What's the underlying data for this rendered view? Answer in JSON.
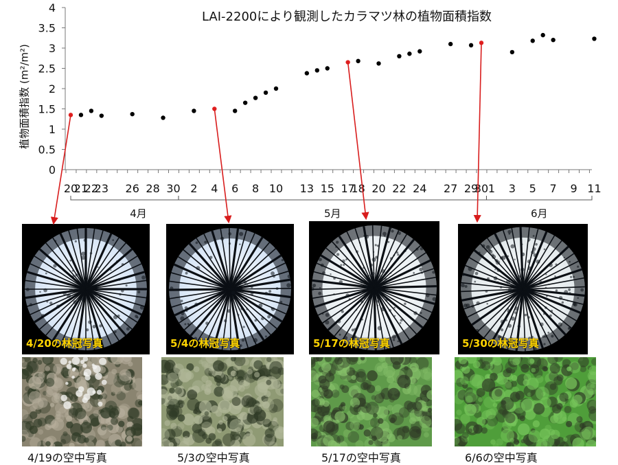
{
  "chart_data": {
    "type": "scatter",
    "title": "LAI-2200により観測したカラマツ林の植物面積指数",
    "ylabel": "植物面積指数 (m²/m²)",
    "ylim": [
      0,
      4
    ],
    "yticks": [
      "0",
      "0.5",
      "1",
      "1.5",
      "2",
      "2.5",
      "3",
      "3.5",
      "4"
    ],
    "xlim_days": [
      110,
      162
    ],
    "xticks": [
      {
        "day": 110,
        "label": "20"
      },
      {
        "day": 111,
        "label": "21"
      },
      {
        "day": 112,
        "label": "22"
      },
      {
        "day": 113,
        "label": "23"
      },
      {
        "day": 116,
        "label": "26"
      },
      {
        "day": 118,
        "label": "28"
      },
      {
        "day": 120,
        "label": "30"
      },
      {
        "day": 122,
        "label": "2"
      },
      {
        "day": 124,
        "label": "4"
      },
      {
        "day": 126,
        "label": "6"
      },
      {
        "day": 128,
        "label": "8"
      },
      {
        "day": 130,
        "label": "10"
      },
      {
        "day": 133,
        "label": "13"
      },
      {
        "day": 135,
        "label": "15"
      },
      {
        "day": 137,
        "label": "17"
      },
      {
        "day": 138,
        "label": "18"
      },
      {
        "day": 140,
        "label": "20"
      },
      {
        "day": 142,
        "label": "22"
      },
      {
        "day": 144,
        "label": "24"
      },
      {
        "day": 147,
        "label": "27"
      },
      {
        "day": 149,
        "label": "29"
      },
      {
        "day": 150,
        "label": "30"
      },
      {
        "day": 151,
        "label": "1"
      },
      {
        "day": 153,
        "label": "3"
      },
      {
        "day": 155,
        "label": "5"
      },
      {
        "day": 157,
        "label": "7"
      },
      {
        "day": 159,
        "label": "9"
      },
      {
        "day": 161,
        "label": "11"
      }
    ],
    "months": [
      {
        "label": "4月",
        "from_day": 110,
        "to_day": 120.5
      },
      {
        "label": "5月",
        "from_day": 120.5,
        "to_day": 150.5
      },
      {
        "label": "6月",
        "from_day": 150.5,
        "to_day": 162
      }
    ],
    "series": [
      {
        "points": [
          {
            "day": 110,
            "y": 1.35,
            "highlight": true
          },
          {
            "day": 111,
            "y": 1.35
          },
          {
            "day": 112,
            "y": 1.45
          },
          {
            "day": 113,
            "y": 1.33
          },
          {
            "day": 116,
            "y": 1.37
          },
          {
            "day": 119,
            "y": 1.28
          },
          {
            "day": 122,
            "y": 1.45
          },
          {
            "day": 124,
            "y": 1.5,
            "highlight": true
          },
          {
            "day": 126,
            "y": 1.45
          },
          {
            "day": 127,
            "y": 1.65
          },
          {
            "day": 128,
            "y": 1.77
          },
          {
            "day": 129,
            "y": 1.9
          },
          {
            "day": 130,
            "y": 2.0
          },
          {
            "day": 133,
            "y": 2.38
          },
          {
            "day": 134,
            "y": 2.45
          },
          {
            "day": 135,
            "y": 2.5
          },
          {
            "day": 137,
            "y": 2.65,
            "highlight": true
          },
          {
            "day": 138,
            "y": 2.68
          },
          {
            "day": 140,
            "y": 2.62
          },
          {
            "day": 142,
            "y": 2.8
          },
          {
            "day": 143,
            "y": 2.86
          },
          {
            "day": 144,
            "y": 2.92
          },
          {
            "day": 147,
            "y": 3.1
          },
          {
            "day": 149,
            "y": 3.07
          },
          {
            "day": 150,
            "y": 3.13,
            "highlight": true
          },
          {
            "day": 153,
            "y": 2.9
          },
          {
            "day": 155,
            "y": 3.18
          },
          {
            "day": 156,
            "y": 3.32
          },
          {
            "day": 157,
            "y": 3.2
          },
          {
            "day": 161,
            "y": 3.23
          }
        ]
      }
    ],
    "colors": {
      "point": "#000000",
      "highlight": "#e02020",
      "arrow": "#d81c1c"
    }
  },
  "canopy_photos": [
    {
      "caption": "4/20の林冠写真",
      "sky": "#cfe0f4",
      "density": 0.35
    },
    {
      "caption": "5/4の林冠写真",
      "sky": "#cfe0f4",
      "density": 0.4
    },
    {
      "caption": "5/17の林冠写真",
      "sky": "#e4ebef",
      "density": 0.6
    },
    {
      "caption": "5/30の林冠写真",
      "sky": "#dde5e8",
      "density": 0.75
    }
  ],
  "aerial_photos": [
    {
      "caption": "4/19の空中写真",
      "base": "#8a8470",
      "tint": "#b6ae9c"
    },
    {
      "caption": "5/3の空中写真",
      "base": "#8f9a74",
      "tint": "#b2b89a"
    },
    {
      "caption": "5/17の空中写真",
      "base": "#5f9a4a",
      "tint": "#86bf6a"
    },
    {
      "caption": "6/6の空中写真",
      "base": "#4f9e3a",
      "tint": "#78c55c"
    }
  ]
}
